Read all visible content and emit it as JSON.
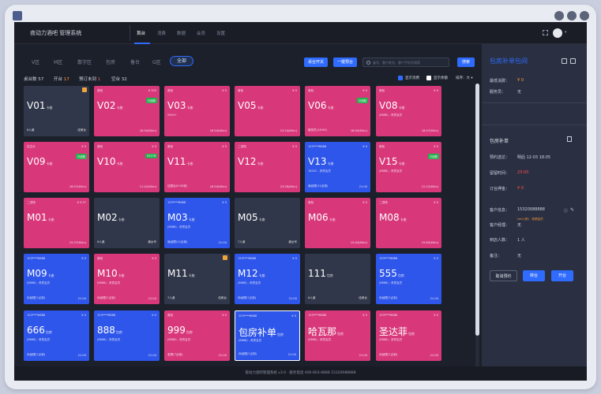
{
  "app": {
    "brand": "夜动力酒吧 管理系统",
    "nav": [
      "首台",
      "消费",
      "数据",
      "会员",
      "设置"
    ],
    "active_nav": 0
  },
  "zones": {
    "items": [
      "V区",
      "M区",
      "散字区",
      "包房",
      "备台",
      "G区"
    ],
    "active_label": "全部"
  },
  "toolbar": {
    "btn_merge": "桌台开关",
    "btn_batch": "一键预台",
    "search_placeholder": "桌号、客户姓名、客户手机号搜索",
    "btn_search": "搜索"
  },
  "stats": {
    "total_label": "桌台数",
    "total": "57",
    "open_label": "开台",
    "open": "17",
    "reserved_label": "预订未到",
    "reserved": "1",
    "free_label": "空台",
    "free": "32"
  },
  "filters": {
    "show_consume": "显示消费",
    "show_balance": "显示余额",
    "sort_label": "排序：",
    "sort_value": "大 ▾"
  },
  "cards": [
    {
      "style": "dark",
      "tl": "",
      "tr": "",
      "name": "V01",
      "type": "卡座",
      "sub": "",
      "bl": "6人桌",
      "br": "佳美台",
      "badge": "",
      "flag": true
    },
    {
      "style": "pink",
      "tl": "首轮",
      "tr": "¥ 102",
      "name": "V02",
      "type": "卡座",
      "sub": "",
      "bl": "",
      "br": "18:54(60m)",
      "badge": "已结账",
      "flag": false
    },
    {
      "style": "pink",
      "tl": "首轮",
      "tr": "¥ 0",
      "name": "V03",
      "type": "卡座",
      "sub": "2604+",
      "bl": "",
      "br": "18:54(60m)",
      "badge": "",
      "flag": false
    },
    {
      "style": "pink",
      "tl": "首轮",
      "tr": "¥ 0",
      "name": "V05",
      "type": "卡座",
      "sub": "",
      "bl": "",
      "br": "23:24(60m)",
      "badge": "",
      "flag": false
    },
    {
      "style": "pink",
      "tl": "首轮",
      "tr": "¥ 0",
      "name": "V06",
      "type": "卡座",
      "sub": "",
      "bl": "服务员(18:00)",
      "br": "18:00(60m)",
      "badge": "已结账",
      "flag": false
    },
    {
      "style": "pink",
      "tl": "首轮",
      "tr": "¥ 0",
      "name": "V08",
      "type": "卡座",
      "sub": "(8888) - 贵宾会员",
      "bl": "",
      "br": "18:07(60m)",
      "badge": "",
      "flag": false
    },
    {
      "style": "pink",
      "tl": "拉达分",
      "tr": "¥ 0",
      "name": "V09",
      "type": "卡座",
      "sub": "",
      "bl": "",
      "br": "18:07(60m)",
      "badge": "已结账",
      "flag": false
    },
    {
      "style": "pink",
      "tl": "首轮",
      "tr": "¥ 0",
      "name": "V10",
      "type": "卡座",
      "sub": "",
      "bl": "",
      "br": "11:42(60m)",
      "badge": "¥1178",
      "flag": false
    },
    {
      "style": "pink",
      "tl": "首轮",
      "tr": "¥ 0",
      "name": "V11",
      "type": "卡座",
      "sub": "",
      "bl": "佳居台(0:00准)",
      "br": "18:54(60m)",
      "badge": "",
      "flag": false
    },
    {
      "style": "pink",
      "tl": "二进场",
      "tr": "¥ 0",
      "name": "V12",
      "type": "卡座",
      "sub": "",
      "bl": "",
      "br": "23:28(60m)",
      "badge": "",
      "flag": false
    },
    {
      "style": "blue",
      "tl": "153****8888",
      "tr": "¥ 0",
      "name": "V13",
      "type": "卡座",
      "sub": "1820C - 贵宾会员",
      "bl": "吴经理(12点到)",
      "br": "21:00",
      "badge": "",
      "flag": false
    },
    {
      "style": "pink",
      "tl": "首轮",
      "tr": "¥ 0",
      "name": "V15",
      "type": "卡座",
      "sub": "(8888) - 贵宾会员",
      "bl": "",
      "br": "12:22(60m)",
      "badge": "已结账",
      "flag": false
    },
    {
      "style": "pink",
      "tl": "二进场",
      "tr": "¥ 0.57",
      "name": "M01",
      "type": "卡座",
      "sub": "",
      "bl": "",
      "br": "15:37(60m)",
      "badge": "",
      "flag": false
    },
    {
      "style": "dark",
      "tl": "",
      "tr": "",
      "name": "M02",
      "type": "卡座",
      "sub": "",
      "bl": "6人桌",
      "br": "桌台号",
      "badge": "",
      "flag": false
    },
    {
      "style": "blue",
      "tl": "153****8888",
      "tr": "¥ 0",
      "name": "M03",
      "type": "卡座",
      "sub": "(8888) - 贵宾会员",
      "bl": "吴经理(12点到)",
      "br": "21:00",
      "badge": "",
      "flag": false
    },
    {
      "style": "dark",
      "tl": "",
      "tr": "",
      "name": "M05",
      "type": "卡座",
      "sub": "",
      "bl": "7人桌",
      "br": "桌台号",
      "badge": "",
      "flag": false
    },
    {
      "style": "pink",
      "tl": "首轮",
      "tr": "¥ 0",
      "name": "M06",
      "type": "卡座",
      "sub": "",
      "bl": "",
      "br": "15:44(60m)",
      "badge": "",
      "flag": false
    },
    {
      "style": "pink",
      "tl": "二进场",
      "tr": "¥ 0",
      "name": "M08",
      "type": "卡座",
      "sub": "",
      "bl": "",
      "br": "15:65(60m)",
      "badge": "",
      "flag": false
    },
    {
      "style": "blue",
      "tl": "153****8888",
      "tr": "¥ 0",
      "name": "M09",
      "type": "卡座",
      "sub": "(8888) - 贵宾会员",
      "bl": "孙经理(7点到)",
      "br": "21:00",
      "badge": "",
      "flag": false
    },
    {
      "style": "pink",
      "tl": "首轮",
      "tr": "¥ 0",
      "name": "M10",
      "type": "卡座",
      "sub": "(8888) - 贵宾会员",
      "bl": "孙经理(7点到)",
      "br": "21:00",
      "badge": "",
      "flag": false
    },
    {
      "style": "dark",
      "tl": "",
      "tr": "",
      "name": "M11",
      "type": "卡座",
      "sub": "",
      "bl": "7人桌",
      "br": "佳美台",
      "badge": "",
      "flag": true
    },
    {
      "style": "blue",
      "tl": "153****8888",
      "tr": "¥ 0",
      "name": "M12",
      "type": "卡座",
      "sub": "(8888) - 贵宾会员",
      "bl": "孙经理(7点到)",
      "br": "21:00",
      "badge": "",
      "flag": false
    },
    {
      "style": "dark",
      "tl": "",
      "tr": "",
      "name": "111",
      "type": "包房",
      "sub": "",
      "bl": "6人桌",
      "br": "佳美台",
      "badge": "",
      "flag": false
    },
    {
      "style": "blue",
      "tl": "153****8888",
      "tr": "¥ 0",
      "name": "555",
      "type": "包房",
      "sub": "(8888) - 贵宾会员",
      "bl": "孙经理(7点到)",
      "br": "21:00",
      "badge": "",
      "flag": false
    },
    {
      "style": "blue",
      "tl": "153****8888",
      "tr": "¥ 0",
      "name": "666",
      "type": "包房",
      "sub": "(8888) - 贵宾会员",
      "bl": "孙经理(7点到)",
      "br": "21:00",
      "badge": "",
      "flag": false
    },
    {
      "style": "blue",
      "tl": "153****8888",
      "tr": "¥ 0",
      "name": "888",
      "type": "包房",
      "sub": "(8888) - 贵宾会员",
      "bl": "",
      "br": "21:00",
      "badge": "",
      "flag": false
    },
    {
      "style": "pink",
      "tl": "首轮",
      "tr": "¥ 0",
      "name": "999",
      "type": "包房",
      "sub": "(8888) - 贵宾会员",
      "bl": "老顾(7点到)",
      "br": "21:00",
      "badge": "",
      "flag": false
    },
    {
      "style": "blue",
      "tl": "153****8888",
      "tr": "¥ 0",
      "name": "包房补单",
      "type": "包房",
      "sub": "(8888) - 贵宾会员",
      "bl": "孙经理(7点到)",
      "br": "21:00",
      "badge": "",
      "flag": false,
      "selected": true
    },
    {
      "style": "pink",
      "tl": "153****8888",
      "tr": "¥ 0",
      "name": "哈瓦那",
      "type": "包房",
      "sub": "(8888) - 贵宾会员",
      "bl": "",
      "br": "21:00",
      "badge": "",
      "flag": false
    },
    {
      "style": "pink",
      "tl": "153****8888",
      "tr": "¥ 0",
      "name": "圣达菲",
      "type": "包房",
      "sub": "(8888) - 贵宾会员",
      "bl": "孙经理(7点到)",
      "br": "21:00",
      "badge": "",
      "flag": false
    }
  ],
  "panel": {
    "title": "包房补单包间",
    "min_consume_label": "最低消费：",
    "min_consume": "¥ 0",
    "service_label": "服务员：",
    "service": "无",
    "section": "包房补单",
    "rows": [
      {
        "label": "预约送达：",
        "value": "明后  12-03 18:05",
        "hl": "明后"
      },
      {
        "label": "留留时间：",
        "value": "23:00",
        "red": true
      },
      {
        "label": "订台押金：",
        "value": "¥ 0",
        "red": true
      },
      {
        "label": "客户信息：",
        "value": "15320088888"
      },
      {
        "label": "客户经理：",
        "value": "无"
      },
      {
        "label": "到店人数：",
        "value": "1 人"
      },
      {
        "label": "备注：",
        "value": "无"
      }
    ],
    "member_note": "Lev1(贵) · 老顾会员",
    "btn_cancel": "取消预约",
    "btn_transfer": "转台",
    "btn_open": "开台"
  },
  "footer": "夜动力酒吧管理系统 v3.0 · 服务电话 400-803-8888 15320088888"
}
